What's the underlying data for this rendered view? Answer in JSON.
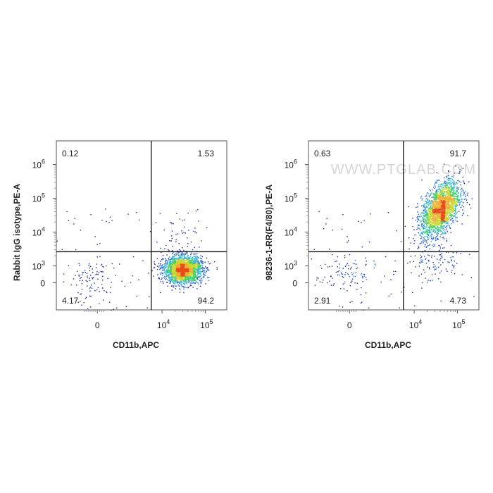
{
  "chart_data": [
    {
      "type": "scatter",
      "subtype": "flow-cytometry-density-dot-plot",
      "xlabel": "CD11b,APC",
      "ylabel": "Rabbit IgG isotype,PE-A",
      "x_ticks": [
        {
          "base": "0",
          "exp": ""
        },
        {
          "base": "10",
          "exp": "4"
        },
        {
          "base": "10",
          "exp": "5"
        }
      ],
      "y_ticks": [
        {
          "base": "0",
          "exp": ""
        },
        {
          "base": "10",
          "exp": "3"
        },
        {
          "base": "10",
          "exp": "4"
        },
        {
          "base": "10",
          "exp": "5"
        },
        {
          "base": "10",
          "exp": "6"
        }
      ],
      "x_scale": "biexponential",
      "y_scale": "biexponential",
      "quadrants": {
        "upper_left": "0.12",
        "upper_right": "1.53",
        "lower_left": "4.17",
        "lower_right": "94.2"
      },
      "populations": [
        {
          "x_center": 30000,
          "y_center": 800,
          "share": 0.94
        },
        {
          "x_center": -300,
          "y_center": 200,
          "share": 0.04
        },
        {
          "x_center": 20000,
          "y_center": 8000,
          "share": 0.015
        }
      ],
      "colormap": [
        "#1a2a9c",
        "#2f6bd8",
        "#33b6c9",
        "#3fcf6a",
        "#c8d830",
        "#f0b030",
        "#e84a1c"
      ],
      "watermark": ""
    },
    {
      "type": "scatter",
      "subtype": "flow-cytometry-density-dot-plot",
      "xlabel": "CD11b,APC",
      "ylabel": "98236-1-RR(F4/80),PE-A",
      "x_ticks": [
        {
          "base": "0",
          "exp": ""
        },
        {
          "base": "10",
          "exp": "4"
        },
        {
          "base": "10",
          "exp": "5"
        }
      ],
      "y_ticks": [
        {
          "base": "0",
          "exp": ""
        },
        {
          "base": "10",
          "exp": "3"
        },
        {
          "base": "10",
          "exp": "4"
        },
        {
          "base": "10",
          "exp": "5"
        },
        {
          "base": "10",
          "exp": "6"
        }
      ],
      "x_scale": "biexponential",
      "y_scale": "biexponential",
      "quadrants": {
        "upper_left": "0.63",
        "upper_right": "91.7",
        "lower_left": "2.91",
        "lower_right": "4.73"
      },
      "populations": [
        {
          "x_center": 40000,
          "y_center": 50000,
          "share": 0.9
        },
        {
          "x_center": 30000,
          "y_center": 1500,
          "share": 0.05
        },
        {
          "x_center": -200,
          "y_center": 600,
          "share": 0.04
        }
      ],
      "colormap": [
        "#1a2a9c",
        "#2f6bd8",
        "#33b6c9",
        "#3fcf6a",
        "#c8d830",
        "#f0b030",
        "#e84a1c"
      ],
      "watermark": "WWW.PTGLAB.COM"
    }
  ]
}
